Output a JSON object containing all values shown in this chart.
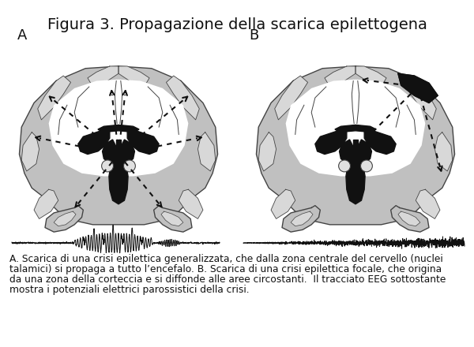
{
  "title": "Figura 3. Propagazione della scarica epilettogena",
  "title_fontsize": 14,
  "label_A": "A",
  "label_B": "B",
  "caption_line1": "A. Scarica di una crisi epilettica generalizzata, che dalla zona centrale del cervello (nuclei",
  "caption_line2": "talamici) si propaga a tutto l’encefalo. B. Scarica di una crisi epilettica focale, che origina",
  "caption_line3": "da una zona della corteccia e si diffonde alle aree circostanti.  Il tracciato EEG sottostante",
  "caption_line4": "mostra i potenziali elettrici parossistici della crisi.",
  "caption_fontsize": 8.8,
  "bg_color": "#ffffff",
  "gray": "#c0c0c0",
  "light_gray": "#d8d8d8",
  "white": "#ffffff",
  "dark": "#111111",
  "outline": "#444444",
  "eeg_color": "#111111"
}
